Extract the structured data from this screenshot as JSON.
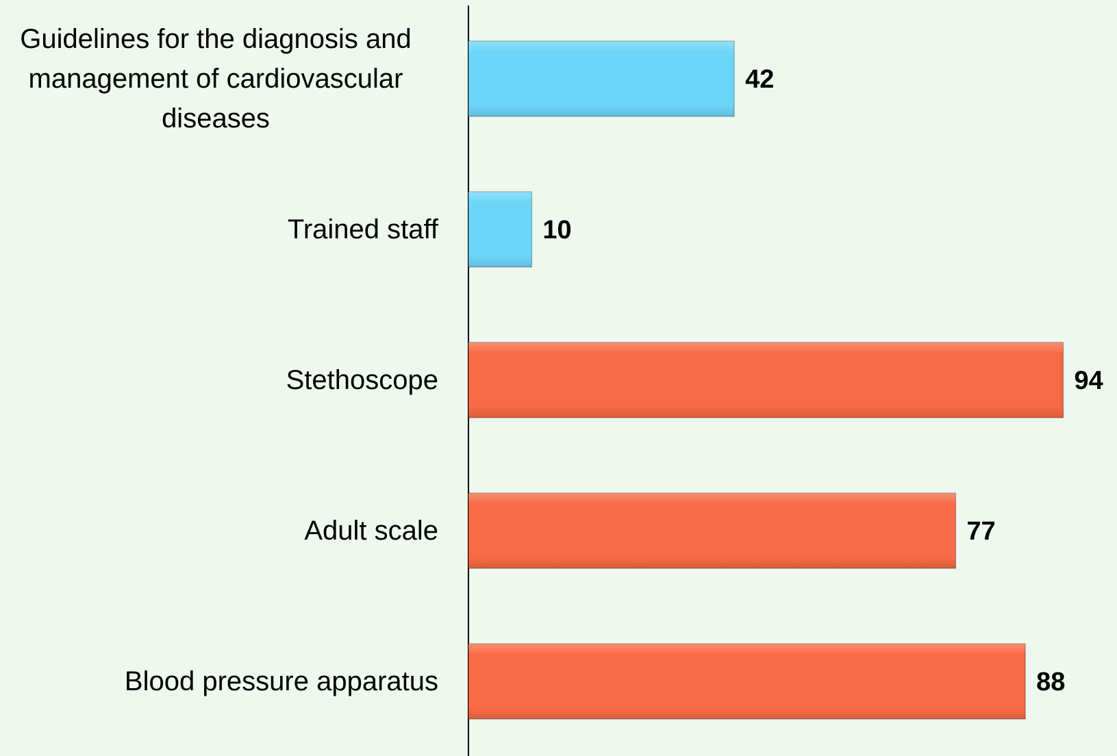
{
  "chart_data": {
    "type": "barh",
    "categories": [
      "Guidelines for the diagnosis and management of cardiovascular diseases",
      "Trained staff",
      "Stethoscope",
      "Adult scale",
      "Blood pressure apparatus"
    ],
    "values": [
      42,
      10,
      94,
      77,
      88
    ],
    "colors": [
      "#6dd6f8",
      "#6dd6f8",
      "#f86a45",
      "#f86a45",
      "#f86a45"
    ],
    "xlim": [
      0,
      100
    ]
  }
}
